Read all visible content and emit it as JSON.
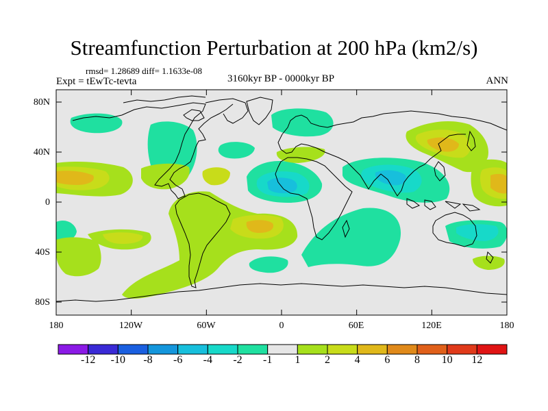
{
  "title": "Streamfunction Perturbation at 200 hPa (km2/s)",
  "stats": "rmsd= 1.28689 diff= 1.1633e-08",
  "experiment": "Expt = tEwTc-tevta",
  "period": "3160kyr BP - 0000kyr BP",
  "season": "ANN",
  "lat_labels": [
    "80N",
    "40N",
    "0",
    "40S",
    "80S"
  ],
  "lon_labels": [
    "180",
    "120W",
    "60W",
    "0",
    "60E",
    "120E",
    "180"
  ],
  "colorbar": {
    "labels": [
      "-12",
      "-10",
      "-8",
      "-6",
      "-4",
      "-2",
      "-1",
      "1",
      "2",
      "4",
      "6",
      "8",
      "10",
      "12"
    ],
    "colors": [
      "#8b1ae6",
      "#3a2ad6",
      "#1a5fe0",
      "#1496dc",
      "#17bfdc",
      "#17d9c9",
      "#1fe0a0",
      "#e6e6e6",
      "#a6e01c",
      "#c8dc1a",
      "#e0b81a",
      "#e08a1a",
      "#e0601a",
      "#e03a1a",
      "#e01414"
    ]
  },
  "colors": {
    "background": "#e6e6e6",
    "neg1": "#1fe0a0",
    "neg2": "#17d9c9",
    "neg4": "#17bfdc",
    "pos1": "#a6e01c",
    "pos2": "#c8dc1a",
    "pos4": "#e0b81a",
    "pos6": "#e08a1a"
  }
}
